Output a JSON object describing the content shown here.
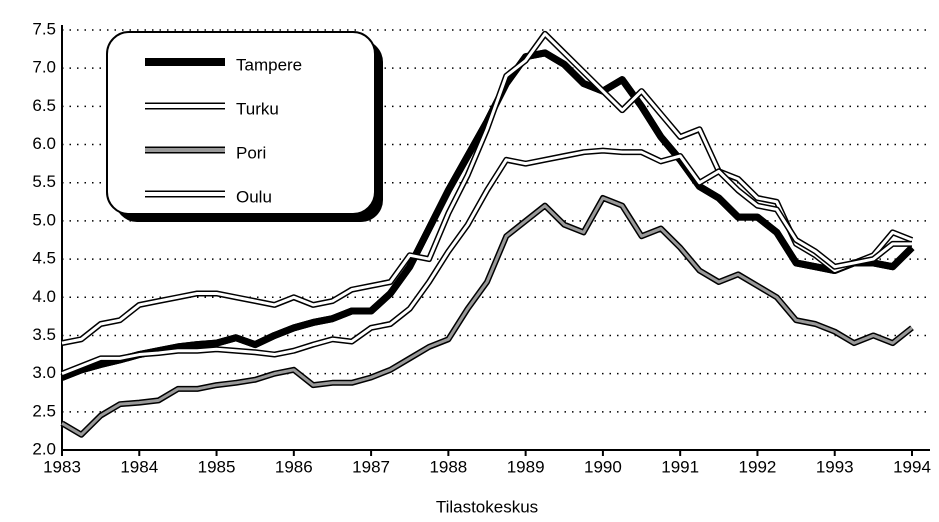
{
  "chart_data": {
    "type": "line",
    "xlabel": "Tilastokeskus",
    "x": [
      1983,
      1983.25,
      1983.5,
      1983.75,
      1984,
      1984.25,
      1984.5,
      1984.75,
      1985,
      1985.25,
      1985.5,
      1985.75,
      1986,
      1986.25,
      1986.5,
      1986.75,
      1987,
      1987.25,
      1987.5,
      1987.75,
      1988,
      1988.25,
      1988.5,
      1988.75,
      1989,
      1989.25,
      1989.5,
      1989.75,
      1990,
      1990.25,
      1990.5,
      1990.75,
      1991,
      1991.25,
      1991.5,
      1991.75,
      1992,
      1992.25,
      1992.5,
      1992.75,
      1993,
      1993.25,
      1993.5,
      1993.75,
      1994
    ],
    "series": [
      {
        "name": "Tampere",
        "color": "#000000",
        "values": [
          2.95,
          3.05,
          3.12,
          3.18,
          3.25,
          3.3,
          3.35,
          3.38,
          3.4,
          3.47,
          3.38,
          3.5,
          3.6,
          3.67,
          3.72,
          3.82,
          3.82,
          4.05,
          4.4,
          4.9,
          5.4,
          5.85,
          6.3,
          6.8,
          7.15,
          7.2,
          7.05,
          6.8,
          6.7,
          6.85,
          6.5,
          6.1,
          5.8,
          5.45,
          5.3,
          5.05,
          5.05,
          4.85,
          4.45,
          4.4,
          4.35,
          4.45,
          4.45,
          4.4,
          4.65
        ]
      },
      {
        "name": "Turku",
        "color": "#ffffff",
        "values": [
          3.4,
          3.45,
          3.65,
          3.7,
          3.9,
          3.95,
          4.0,
          4.05,
          4.05,
          4.0,
          3.95,
          3.9,
          4.0,
          3.9,
          3.95,
          4.1,
          4.15,
          4.2,
          4.55,
          4.5,
          5.1,
          5.6,
          6.2,
          6.9,
          7.1,
          7.45,
          7.2,
          6.95,
          6.7,
          6.45,
          6.7,
          6.4,
          6.1,
          6.2,
          5.65,
          5.55,
          5.3,
          5.25,
          4.7,
          4.55,
          4.35,
          4.45,
          4.55,
          4.85,
          4.75
        ]
      },
      {
        "name": "Pori",
        "color": "#999999",
        "values": [
          2.35,
          2.2,
          2.45,
          2.6,
          2.62,
          2.65,
          2.8,
          2.8,
          2.85,
          2.88,
          2.92,
          3.0,
          3.05,
          2.85,
          2.88,
          2.88,
          2.95,
          3.05,
          3.2,
          3.35,
          3.45,
          3.85,
          4.2,
          4.8,
          5.0,
          5.2,
          4.95,
          4.85,
          5.3,
          5.2,
          4.8,
          4.9,
          4.65,
          4.35,
          4.2,
          4.3,
          4.15,
          4.0,
          3.7,
          3.65,
          3.55,
          3.4,
          3.5,
          3.4,
          3.6
        ]
      },
      {
        "name": "Oulu",
        "color": "#ffffff",
        "values": [
          3.0,
          3.1,
          3.2,
          3.2,
          3.25,
          3.27,
          3.3,
          3.3,
          3.32,
          3.3,
          3.28,
          3.25,
          3.3,
          3.38,
          3.45,
          3.42,
          3.6,
          3.65,
          3.85,
          4.2,
          4.6,
          4.95,
          5.4,
          5.8,
          5.75,
          5.8,
          5.85,
          5.9,
          5.92,
          5.9,
          5.9,
          5.78,
          5.85,
          5.5,
          5.65,
          5.4,
          5.2,
          5.15,
          4.75,
          4.6,
          4.4,
          4.45,
          4.5,
          4.7,
          4.7
        ]
      }
    ],
    "xlim": [
      1983,
      1994
    ],
    "xticks": [
      1983,
      1984,
      1985,
      1986,
      1987,
      1988,
      1989,
      1990,
      1991,
      1992,
      1993,
      1994
    ],
    "ylim": [
      2,
      7.5
    ],
    "yticks": [
      {
        "value": 2,
        "label": "2.0"
      },
      2.5,
      {
        "value": 3,
        "label": "3.0"
      },
      3.5,
      {
        "value": 4,
        "label": "4.0"
      },
      4.5,
      {
        "value": 5,
        "label": "5.0"
      },
      5.5,
      {
        "value": 6,
        "label": "6.0"
      },
      6.5,
      {
        "value": 7,
        "label": "7.0"
      },
      7.5
    ],
    "grid": true,
    "legend": "upper left"
  }
}
